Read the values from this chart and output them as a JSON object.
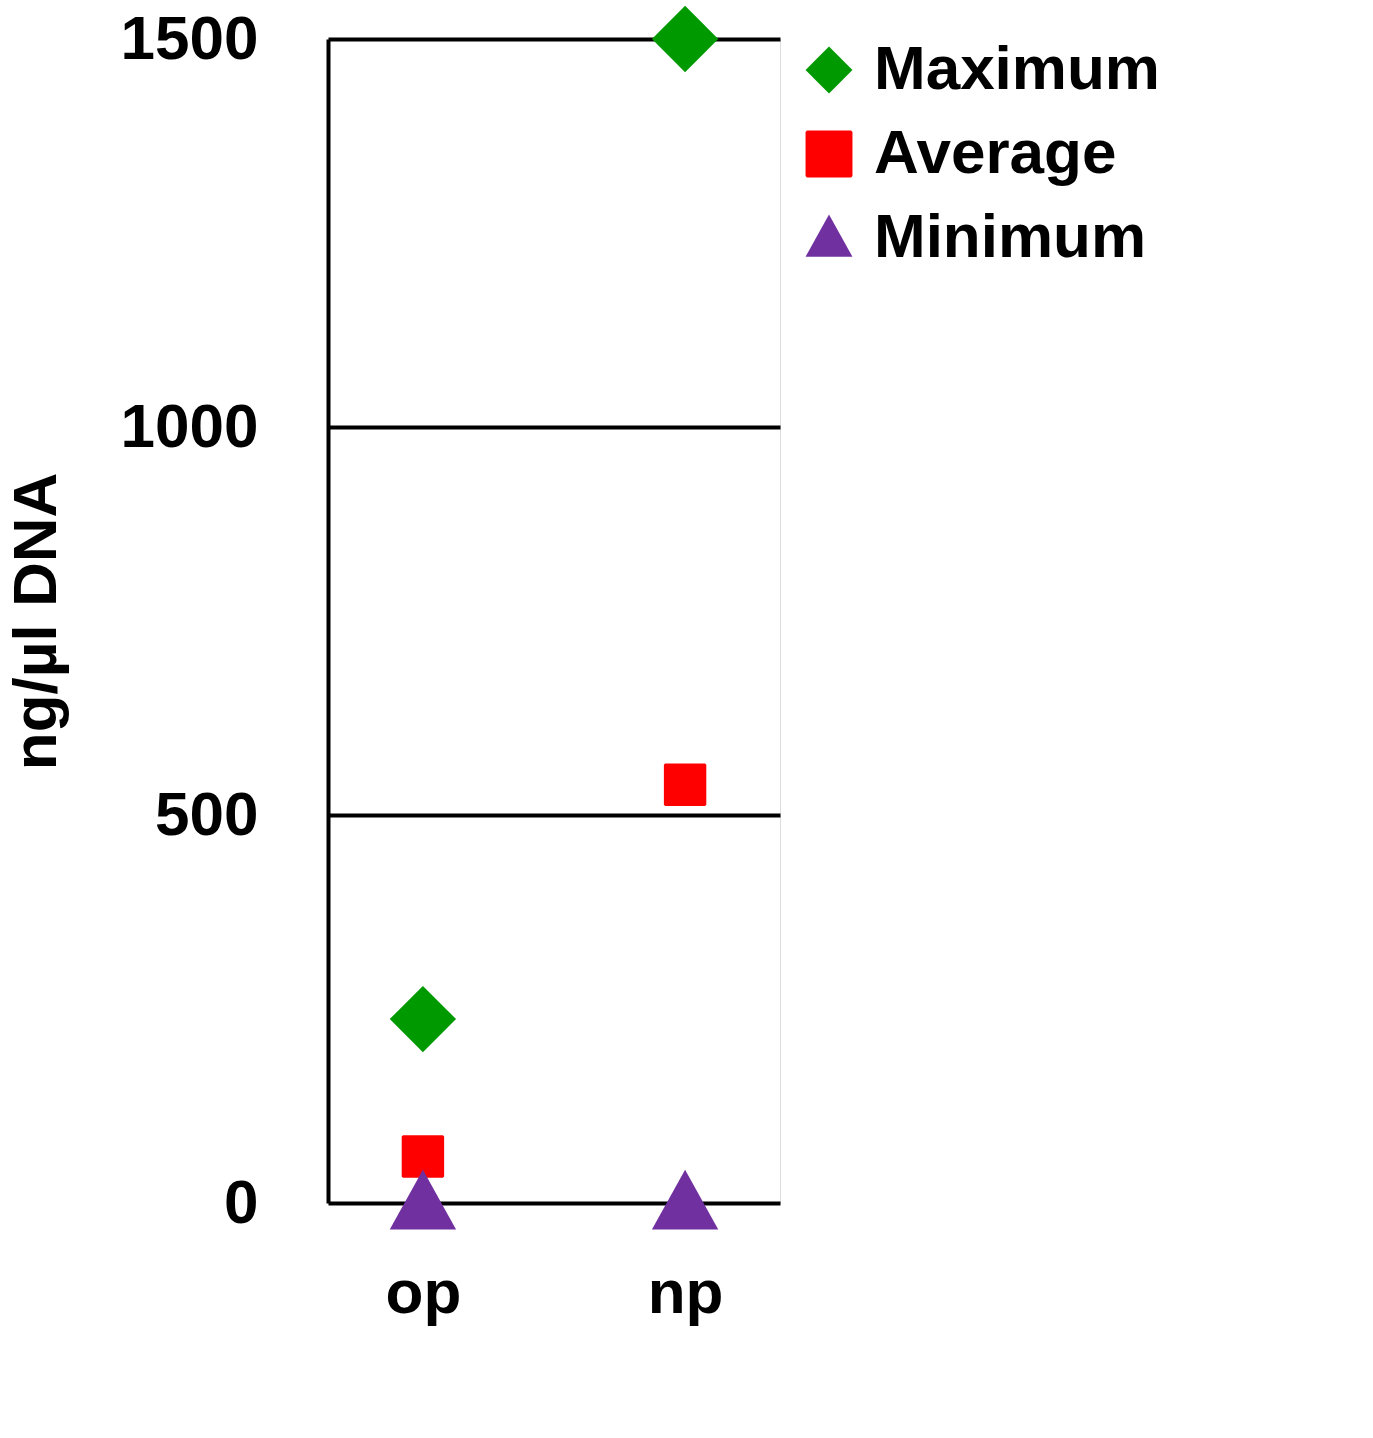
{
  "chart_data": {
    "type": "scatter",
    "ylabel": "ng/µl DNA",
    "categories": [
      "op",
      "np"
    ],
    "series": [
      {
        "name": "Maximum",
        "color": "#009900",
        "marker": "diamond",
        "values": [
          237,
          1500
        ]
      },
      {
        "name": "Average",
        "color": "#ff0000",
        "marker": "square",
        "values": [
          60,
          539
        ]
      },
      {
        "name": "Minimum",
        "color": "#7030a0",
        "marker": "triangle",
        "values": [
          0,
          0
        ]
      }
    ],
    "ylim": [
      0,
      1500
    ],
    "yticks": [
      0,
      500,
      1000,
      1500
    ],
    "grid": "y",
    "legend": "right"
  }
}
